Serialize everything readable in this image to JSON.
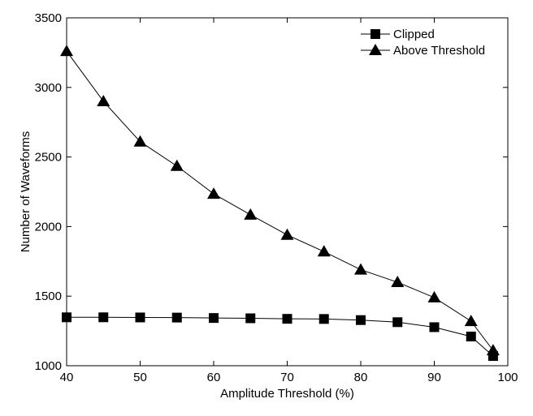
{
  "chart_data": {
    "type": "line",
    "xlabel": "Amplitude Threshold (%)",
    "ylabel": "Number of Waveforms",
    "xlim": [
      40,
      100
    ],
    "ylim": [
      1000,
      3500
    ],
    "xticks": [
      40,
      50,
      60,
      70,
      80,
      90,
      100
    ],
    "yticks": [
      1000,
      1500,
      2000,
      2500,
      3000,
      3500
    ],
    "grid": false,
    "legend_position": "top-right",
    "series": [
      {
        "name": "Clipped",
        "marker": "square",
        "color": "#000000",
        "x": [
          40,
          45,
          50,
          55,
          60,
          65,
          70,
          75,
          80,
          85,
          90,
          95,
          98
        ],
        "y": [
          1348,
          1348,
          1347,
          1346,
          1343,
          1341,
          1337,
          1336,
          1328,
          1313,
          1277,
          1210,
          1070
        ]
      },
      {
        "name": "Above Threshold",
        "marker": "triangle",
        "color": "#000000",
        "x": [
          40,
          45,
          50,
          55,
          60,
          65,
          70,
          75,
          80,
          85,
          90,
          95,
          98
        ],
        "y": [
          3260,
          2900,
          2610,
          2435,
          2235,
          2085,
          1940,
          1820,
          1690,
          1600,
          1490,
          1320,
          1110
        ]
      }
    ]
  }
}
